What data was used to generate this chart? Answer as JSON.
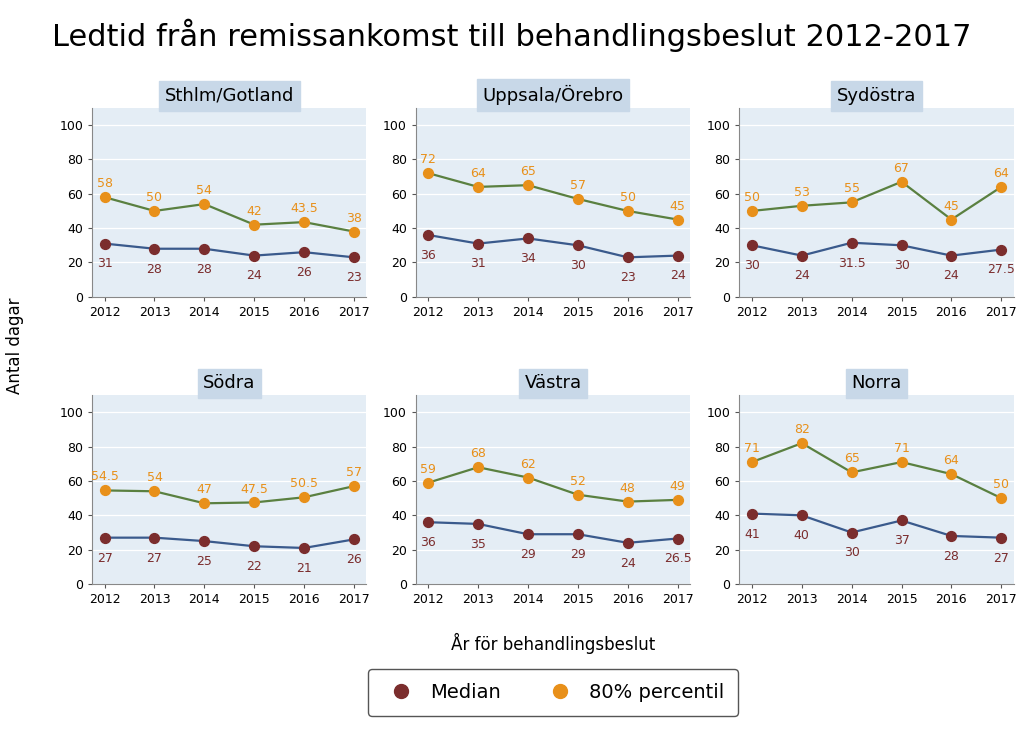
{
  "title": "Ledtid från remissankomst till behandlingsbeslut 2012-2017",
  "xlabel": "År för behandlingsbeslut",
  "ylabel": "Antal dagar",
  "years": [
    2012,
    2013,
    2014,
    2015,
    2016,
    2017
  ],
  "subplots": [
    {
      "title": "Sthlm/Gotland",
      "median": [
        31,
        28,
        28,
        24,
        26,
        23
      ],
      "p80": [
        58,
        50,
        54,
        42,
        43.5,
        38
      ]
    },
    {
      "title": "Uppsala/Örebro",
      "median": [
        36,
        31,
        34,
        30,
        23,
        24
      ],
      "p80": [
        72,
        64,
        65,
        57,
        50,
        45
      ]
    },
    {
      "title": "Sydöstra",
      "median": [
        30,
        24,
        31.5,
        30,
        24,
        27.5
      ],
      "p80": [
        50,
        53,
        55,
        67,
        45,
        64
      ]
    },
    {
      "title": "Södra",
      "median": [
        27,
        27,
        25,
        22,
        21,
        26
      ],
      "p80": [
        54.5,
        54,
        47,
        47.5,
        50.5,
        57
      ]
    },
    {
      "title": "Västra",
      "median": [
        36,
        35,
        29,
        29,
        24,
        26.5
      ],
      "p80": [
        59,
        68,
        62,
        52,
        48,
        49
      ]
    },
    {
      "title": "Norra",
      "median": [
        41,
        40,
        30,
        37,
        28,
        27
      ],
      "p80": [
        71,
        82,
        65,
        71,
        64,
        50
      ]
    }
  ],
  "color_median": "#7B2D2D",
  "color_p80": "#E8901A",
  "color_line_median": "#3A5A8C",
  "color_line_p80": "#5A8040",
  "subplot_bg": "#E4EDF5",
  "title_bg": "#C8D8E8",
  "fig_bg": "#FFFFFF",
  "ylim": [
    0,
    110
  ],
  "yticks": [
    0,
    20,
    40,
    60,
    80,
    100
  ],
  "title_fontsize": 22,
  "subplot_title_fontsize": 13,
  "tick_fontsize": 9,
  "label_fontsize": 12,
  "annotation_fontsize": 9,
  "legend_fontsize": 14
}
